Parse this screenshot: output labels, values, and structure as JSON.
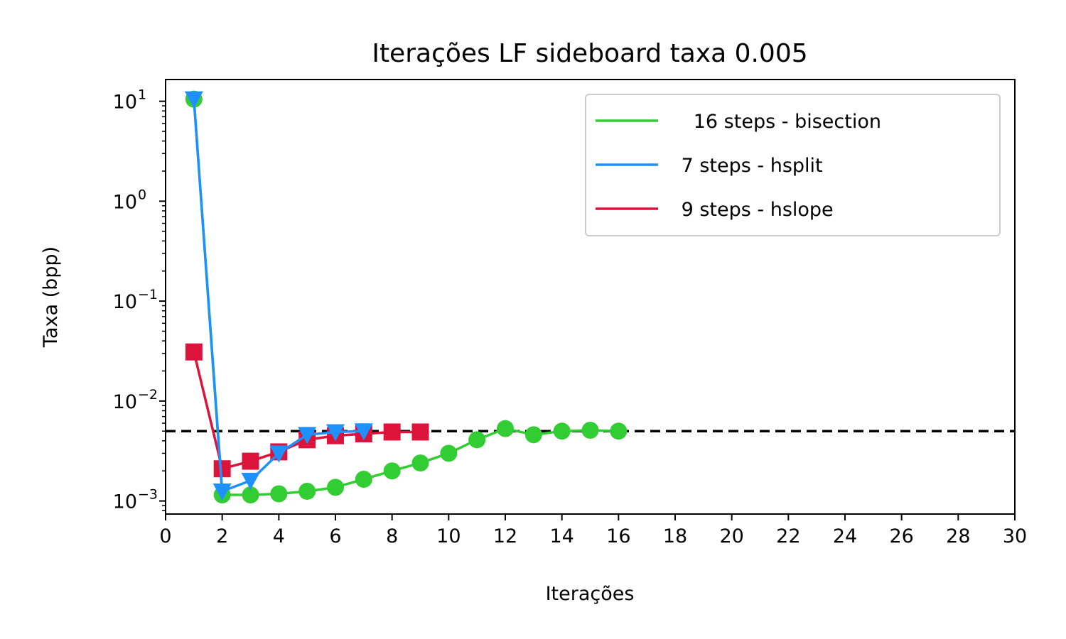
{
  "chart_data": {
    "type": "line",
    "title": "Iterações LF sideboard taxa 0.005",
    "xlabel": "Iterações",
    "ylabel": "Taxa (bpp)",
    "xlim": [
      0,
      30
    ],
    "ylim": [
      0.00074,
      16.5
    ],
    "yscale": "log",
    "xticks": [
      0,
      2,
      4,
      6,
      8,
      10,
      12,
      14,
      16,
      18,
      20,
      22,
      24,
      26,
      28,
      30
    ],
    "yticks": [
      {
        "value": 0.001,
        "base": "10",
        "exp": "−3"
      },
      {
        "value": 0.01,
        "base": "10",
        "exp": "−2"
      },
      {
        "value": 0.1,
        "base": "10",
        "exp": "−1"
      },
      {
        "value": 1,
        "base": "10",
        "exp": "0"
      },
      {
        "value": 10,
        "base": "10",
        "exp": "1"
      }
    ],
    "reference_line": {
      "value": 0.005,
      "style": "dashed",
      "color": "#000000"
    },
    "legend_position": "top-right",
    "series": [
      {
        "name": "   16 steps - bisection",
        "color": "#32cd32",
        "marker": "circle",
        "x": [
          1,
          2,
          3,
          4,
          5,
          6,
          7,
          8,
          9,
          10,
          11,
          12,
          13,
          14,
          15,
          16
        ],
        "values": [
          10.5,
          0.00115,
          0.00115,
          0.00118,
          0.00125,
          0.00137,
          0.00165,
          0.002,
          0.0024,
          0.003,
          0.0041,
          0.0053,
          0.0046,
          0.005,
          0.0051,
          0.005
        ]
      },
      {
        "name": " 7 steps - hsplit",
        "color": "#1e90ff",
        "marker": "triangle-down",
        "x": [
          1,
          2,
          3,
          4,
          5,
          6,
          7
        ],
        "values": [
          10.5,
          0.00125,
          0.0016,
          0.003,
          0.0046,
          0.0049,
          0.005
        ]
      },
      {
        "name": " 9 steps - hslope",
        "color": "#dc143c",
        "marker": "square",
        "x": [
          1,
          2,
          3,
          4,
          5,
          6,
          7,
          8,
          9
        ],
        "values": [
          0.031,
          0.0021,
          0.0025,
          0.0031,
          0.0041,
          0.0045,
          0.0047,
          0.0049,
          0.0049
        ]
      }
    ]
  }
}
